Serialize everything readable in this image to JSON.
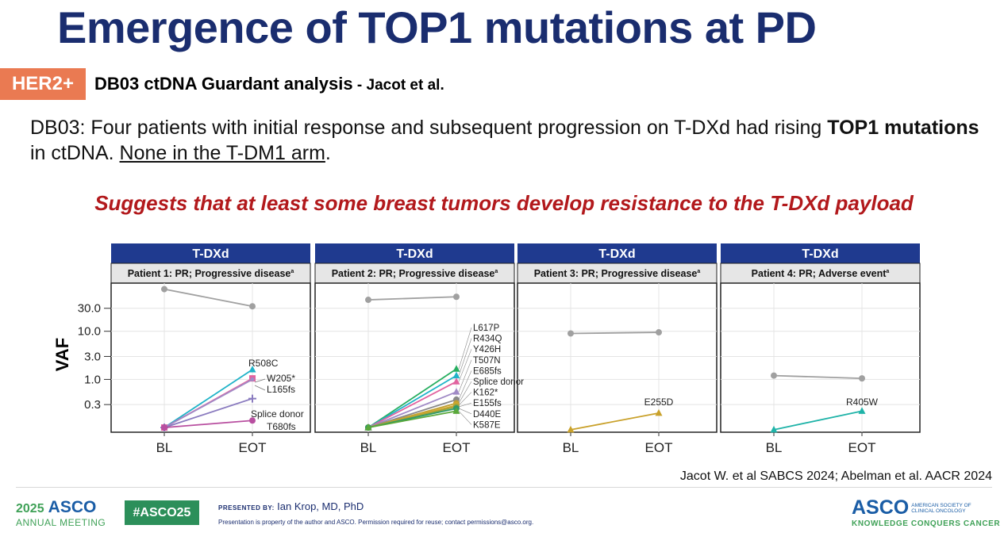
{
  "slide": {
    "title": "Emergence of TOP1 mutations at PD",
    "tag": "HER2+",
    "subtitle": "DB03 ctDNA Guardant analysis",
    "subtitle_author": " - Jacot et al.",
    "body_part1": "DB03: Four patients with initial response and subsequent progression on T-DXd had rising ",
    "body_bold": "TOP1 mutations",
    "body_part2": " in ctDNA. ",
    "body_underline": "None in the T-DM1 arm",
    "body_end": ".",
    "headline": "Suggests that at least some breast tumors develop resistance to the T-DXd payload",
    "reference": "Jacot W. et al SABCS 2024; Abelman et al. AACR 2024"
  },
  "footer": {
    "meeting_year": "2025",
    "meeting_org": "ASCO",
    "meeting_label": "ANNUAL MEETING",
    "hashtag": "#ASCO25",
    "presented_label": "PRESENTED BY:",
    "presenter": "Ian Krop, MD, PhD",
    "disclaimer": "Presentation is property of the author and ASCO. Permission required for reuse; contact permissions@asco.org.",
    "logo_big": "ASCO",
    "logo_small": "AMERICAN SOCIETY OF CLINICAL ONCOLOGY",
    "logo_tagline": "KNOWLEDGE CONQUERS CANCER"
  },
  "chart_data": {
    "type": "line",
    "y_scale": "log",
    "ylabel": "VAF",
    "y_ticks": [
      "30.0",
      "10.0",
      "3.0",
      "1.0",
      "0.3"
    ],
    "y_tick_values": [
      30,
      10,
      3,
      1,
      0.3
    ],
    "ylim": [
      0.08,
      100
    ],
    "x": [
      "BL",
      "EOT"
    ],
    "grid": true,
    "panels": [
      {
        "strip": "T-DXd",
        "label": "Patient 1: PR; Progressive disease",
        "superscript": "a",
        "series": [
          {
            "name": "",
            "values": [
              75,
              33
            ],
            "color": "#a0a0a0",
            "marker": "circle"
          },
          {
            "name": "R508C",
            "values": [
              0.1,
              1.6
            ],
            "color": "#1fb3c8",
            "marker": "triangle"
          },
          {
            "name": "W205*",
            "values": [
              0.1,
              1.05
            ],
            "color": "#e1639f",
            "marker": "square"
          },
          {
            "name": "L165fs",
            "values": [
              0.1,
              1.0
            ],
            "color": "#a08ac6",
            "marker": "none"
          },
          {
            "name": "Splice donor",
            "values": [
              0.1,
              0.4
            ],
            "color": "#8a7bbf",
            "marker": "plus"
          },
          {
            "name": "T680fs",
            "values": [
              0.1,
              0.14
            ],
            "color": "#b84fa0",
            "marker": "circle"
          }
        ]
      },
      {
        "strip": "T-DXd",
        "label": "Patient 2: PR; Progressive disease",
        "superscript": "a",
        "series": [
          {
            "name": "",
            "values": [
              45,
              52
            ],
            "color": "#a0a0a0",
            "marker": "circle"
          },
          {
            "name": "L617P",
            "values": [
              0.1,
              1.65
            ],
            "color": "#27ae60",
            "marker": "triangle"
          },
          {
            "name": "R434Q",
            "values": [
              0.1,
              1.2
            ],
            "color": "#1fb3c8",
            "marker": "triangle"
          },
          {
            "name": "Y426H",
            "values": [
              0.1,
              0.9
            ],
            "color": "#e1639f",
            "marker": "triangle"
          },
          {
            "name": "T507N",
            "values": [
              0.1,
              0.55
            ],
            "color": "#a08ac6",
            "marker": "triangle"
          },
          {
            "name": "E685fs",
            "values": [
              0.1,
              0.38
            ],
            "color": "#888888",
            "marker": "circle"
          },
          {
            "name": "Splice donor",
            "values": [
              0.1,
              0.32
            ],
            "color": "#c0a030",
            "marker": "circle"
          },
          {
            "name": "K162*",
            "values": [
              0.1,
              0.29
            ],
            "color": "#d4a72c",
            "marker": "circle"
          },
          {
            "name": "E155fs",
            "values": [
              0.1,
              0.27
            ],
            "color": "#9aa23c",
            "marker": "circle"
          },
          {
            "name": "D440E",
            "values": [
              0.1,
              0.25
            ],
            "color": "#2e9a6a",
            "marker": "circle"
          },
          {
            "name": "K587E",
            "values": [
              0.1,
              0.22
            ],
            "color": "#5aa83a",
            "marker": "triangle"
          }
        ]
      },
      {
        "strip": "T-DXd",
        "label": "Patient 3: PR; Progressive disease",
        "superscript": "a",
        "series": [
          {
            "name": "",
            "values": [
              9,
              9.5
            ],
            "color": "#a0a0a0",
            "marker": "circle"
          },
          {
            "name": "E255D",
            "values": [
              0.09,
              0.2
            ],
            "color": "#c9a12b",
            "marker": "triangle"
          }
        ]
      },
      {
        "strip": "T-DXd",
        "label": "Patient 4: PR; Adverse event",
        "superscript": "a",
        "series": [
          {
            "name": "",
            "values": [
              1.2,
              1.05
            ],
            "color": "#a0a0a0",
            "marker": "circle"
          },
          {
            "name": "R405W",
            "values": [
              0.09,
              0.22
            ],
            "color": "#1fb3a8",
            "marker": "triangle"
          }
        ]
      }
    ],
    "label_lists": [
      {
        "x": 313,
        "y": 163,
        "anchor": "start",
        "labels": [
          "R508C"
        ]
      },
      {
        "x": 336,
        "y": 183,
        "anchor": "start",
        "labels": [
          "W205*"
        ]
      },
      {
        "x": 336,
        "y": 198,
        "anchor": "start",
        "labels": [
          "L165fs"
        ]
      },
      {
        "x": 316,
        "y": 228,
        "anchor": "start",
        "labels": [
          "Splice donor"
        ]
      },
      {
        "x": 336,
        "y": 243,
        "anchor": "start",
        "labels": [
          "T680fs"
        ]
      }
    ]
  }
}
